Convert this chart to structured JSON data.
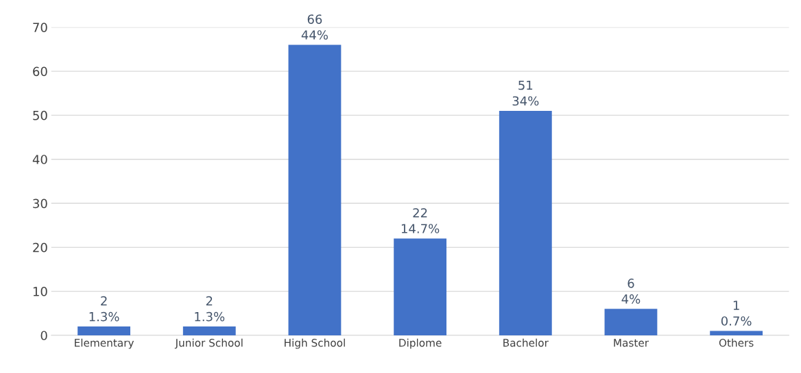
{
  "chart_data": {
    "type": "bar",
    "categories": [
      "Elementary",
      "Junior School",
      "High School",
      "Diplome",
      "Bachelor",
      "Master",
      "Others"
    ],
    "values": [
      2,
      2,
      66,
      22,
      51,
      6,
      1
    ],
    "value_labels": [
      "2\n1.3%",
      "2\n1.3%",
      "66\n44%",
      "22\n14.7%",
      "51\n34%",
      "6\n4%",
      "1\n0.7%"
    ],
    "color": "#4272c8",
    "ylim": [
      0,
      70
    ],
    "yticks": [
      0,
      10,
      20,
      30,
      40,
      50,
      60,
      70
    ],
    "grid": "y",
    "legend": false
  }
}
